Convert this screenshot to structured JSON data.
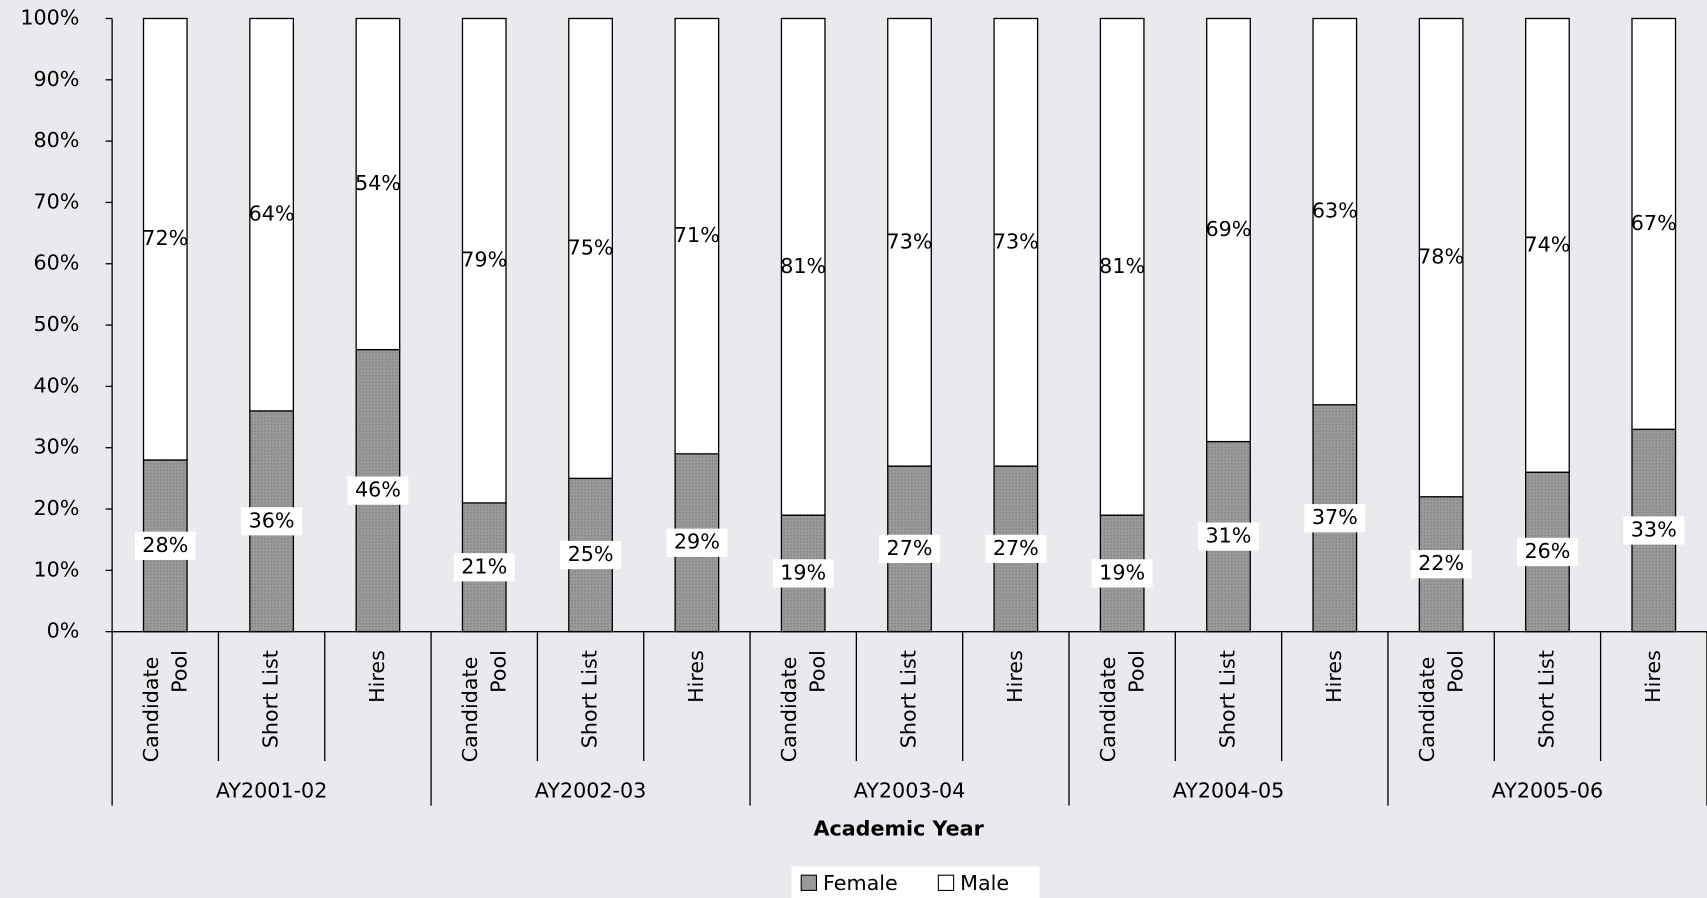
{
  "chart_data": {
    "type": "stacked-bar",
    "x_label": "Academic Year",
    "categories": [
      "Candidate Pool",
      "Short List",
      "Hires",
      "Candidate Pool",
      "Short List",
      "Hires",
      "Candidate Pool",
      "Short List",
      "Hires",
      "Candidate Pool",
      "Short List",
      "Hires",
      "Candidate Pool",
      "Short List",
      "Hires"
    ],
    "groups": [
      "AY2001-02",
      "AY2002-03",
      "AY2003-04",
      "AY2004-05",
      "AY2005-06"
    ],
    "series": [
      {
        "name": "Female",
        "color": "#9a9a9a",
        "values": [
          28,
          36,
          46,
          21,
          25,
          29,
          19,
          27,
          27,
          19,
          31,
          37,
          22,
          26,
          33
        ],
        "value_labels": [
          "28%",
          "36%",
          "46%",
          "21%",
          "25%",
          "29%",
          "19%",
          "27%",
          "27%",
          "19%",
          "31%",
          "37%",
          "22%",
          "26%",
          "33%"
        ]
      },
      {
        "name": "Male",
        "color": "#ffffff",
        "values": [
          72,
          64,
          54,
          79,
          75,
          71,
          81,
          73,
          73,
          81,
          69,
          63,
          78,
          74,
          67
        ],
        "value_labels": [
          "72%",
          "64%",
          "54%",
          "79%",
          "75%",
          "71%",
          "81%",
          "73%",
          "73%",
          "81%",
          "69%",
          "63%",
          "78%",
          "74%",
          "67%"
        ]
      }
    ],
    "ylim": [
      0,
      100
    ],
    "yticks": [
      {
        "value": 0,
        "label": "0%"
      },
      {
        "value": 10,
        "label": "10%"
      },
      {
        "value": 20,
        "label": "20%"
      },
      {
        "value": 30,
        "label": "30%"
      },
      {
        "value": 40,
        "label": "40%"
      },
      {
        "value": 50,
        "label": "50%"
      },
      {
        "value": 60,
        "label": "60%"
      },
      {
        "value": 70,
        "label": "70%"
      },
      {
        "value": 80,
        "label": "80%"
      },
      {
        "value": 90,
        "label": "90%"
      },
      {
        "value": 100,
        "label": "100%"
      }
    ],
    "legend": "bottom"
  }
}
